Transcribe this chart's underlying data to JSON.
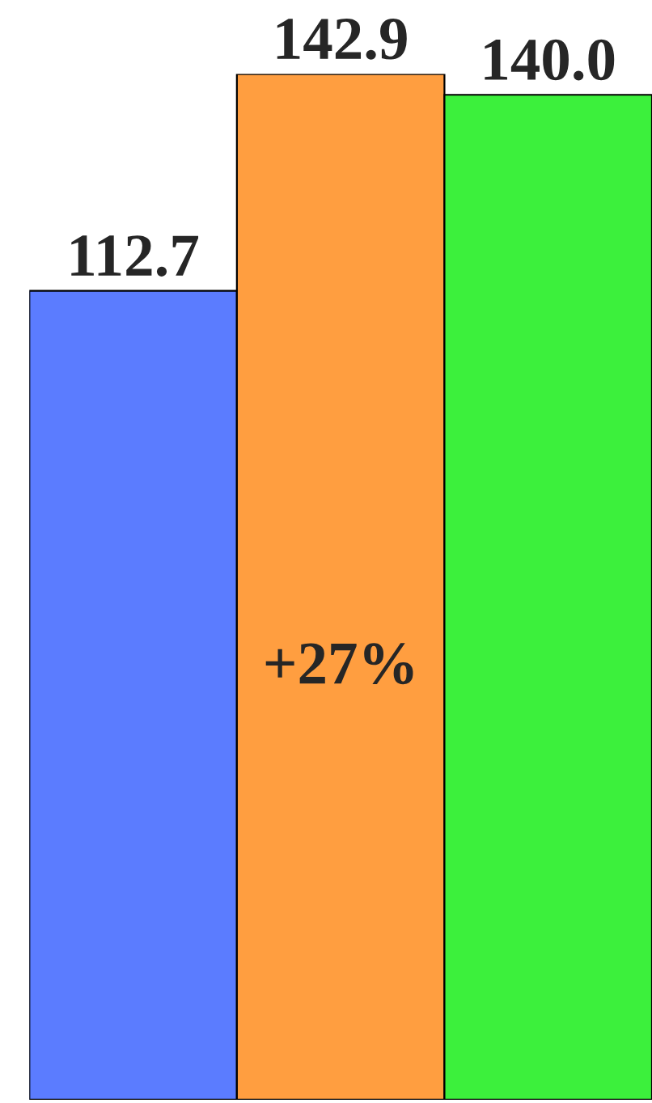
{
  "chart_data": {
    "type": "bar",
    "categories": [
      null,
      null,
      null
    ],
    "values": [
      112.7,
      142.9,
      140.0
    ],
    "colors": [
      "#5b7cff",
      "#ff9e40",
      "#3cf03c"
    ],
    "value_labels": [
      "112.7",
      "142.9",
      "140.0"
    ],
    "annotations": [
      "+27%"
    ],
    "tick_labels": false,
    "grid": false,
    "legend": false
  }
}
